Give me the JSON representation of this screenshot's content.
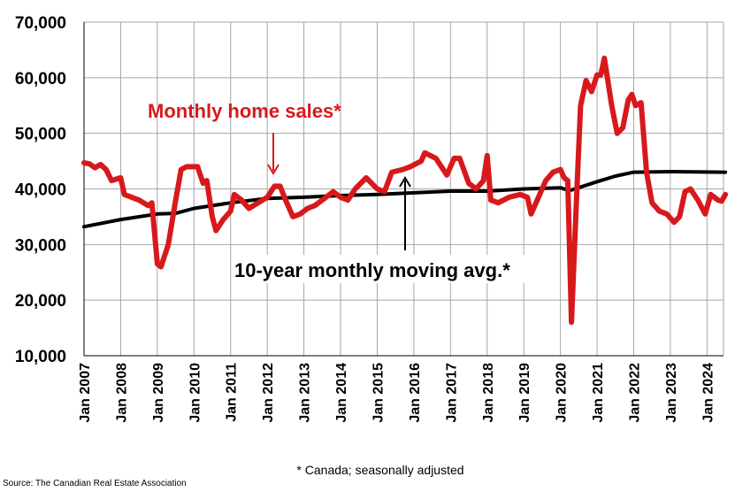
{
  "chart_data": {
    "type": "line",
    "title": "",
    "xlabel": "",
    "ylabel": "",
    "ylim": [
      10000,
      70000
    ],
    "xlim": [
      "Jan 2007",
      "Jun 2024"
    ],
    "grid": true,
    "y_ticks": [
      "10,000",
      "20,000",
      "30,000",
      "40,000",
      "50,000",
      "60,000",
      "70,000"
    ],
    "x_ticks": [
      "Jan 2007",
      "Jan 2008",
      "Jan 2009",
      "Jan 2010",
      "Jan 2011",
      "Jan 2012",
      "Jan 2013",
      "Jan 2014",
      "Jan 2015",
      "Jan 2016",
      "Jan 2017",
      "Jan 2018",
      "Jan 2019",
      "Jan 2020",
      "Jan 2021",
      "Jan 2022",
      "Jan 2023",
      "Jan 2024"
    ],
    "series": [
      {
        "name": "Monthly home sales*",
        "color": "#d7191c",
        "x": [
          2007.0,
          2007.15,
          2007.3,
          2007.45,
          2007.6,
          2007.75,
          2008.0,
          2008.1,
          2008.3,
          2008.5,
          2008.75,
          2008.85,
          2009.0,
          2009.1,
          2009.3,
          2009.5,
          2009.65,
          2009.8,
          2010.0,
          2010.1,
          2010.25,
          2010.35,
          2010.5,
          2010.6,
          2010.8,
          2011.0,
          2011.1,
          2011.3,
          2011.5,
          2011.75,
          2012.0,
          2012.2,
          2012.35,
          2012.5,
          2012.7,
          2012.9,
          2013.1,
          2013.3,
          2013.5,
          2013.8,
          2014.0,
          2014.2,
          2014.4,
          2014.7,
          2015.0,
          2015.2,
          2015.4,
          2015.7,
          2015.9,
          2016.2,
          2016.3,
          2016.6,
          2016.9,
          2017.1,
          2017.25,
          2017.5,
          2017.7,
          2017.9,
          2018.0,
          2018.1,
          2018.3,
          2018.6,
          2018.9,
          2019.1,
          2019.2,
          2019.4,
          2019.6,
          2019.8,
          2020.0,
          2020.1,
          2020.2,
          2020.3,
          2020.45,
          2020.55,
          2020.7,
          2020.85,
          2021.0,
          2021.1,
          2021.2,
          2021.4,
          2021.55,
          2021.7,
          2021.85,
          2021.95,
          2022.05,
          2022.2,
          2022.35,
          2022.5,
          2022.7,
          2022.9,
          2023.1,
          2023.25,
          2023.4,
          2023.55,
          2023.75,
          2023.95,
          2024.1,
          2024.3,
          2024.4,
          2024.5
        ],
        "y": [
          44700,
          44500,
          43800,
          44400,
          43500,
          41500,
          42000,
          39000,
          38500,
          38000,
          37000,
          37500,
          26500,
          26000,
          30000,
          38000,
          43500,
          44000,
          44000,
          44000,
          41000,
          41500,
          35000,
          32500,
          34500,
          36000,
          39000,
          38000,
          36500,
          37500,
          38500,
          40500,
          40500,
          38000,
          35000,
          35500,
          36500,
          37000,
          38000,
          39500,
          38500,
          38000,
          40000,
          42000,
          40000,
          39500,
          43000,
          43500,
          44000,
          45000,
          46500,
          45500,
          42500,
          45500,
          45500,
          41000,
          40000,
          41500,
          46000,
          38000,
          37500,
          38500,
          39000,
          38500,
          35500,
          38500,
          41500,
          43000,
          43500,
          42000,
          41500,
          16000,
          40000,
          55000,
          59500,
          57500,
          60500,
          60500,
          63500,
          55000,
          50000,
          51000,
          56000,
          57000,
          55000,
          55500,
          43000,
          37500,
          36000,
          35500,
          34000,
          35000,
          39500,
          40000,
          38000,
          35500,
          39000,
          38000,
          37800,
          39000
        ]
      },
      {
        "name": "10-year monthly moving avg.*",
        "color": "#000000",
        "x": [
          2007.0,
          2008.0,
          2009.0,
          2009.5,
          2010.0,
          2011.0,
          2012.0,
          2013.0,
          2014.0,
          2015.0,
          2016.0,
          2017.0,
          2018.0,
          2019.0,
          2020.0,
          2020.25,
          2021.0,
          2021.5,
          2022.0,
          2023.0,
          2024.5
        ],
        "y": [
          33200,
          34500,
          35500,
          35600,
          36500,
          37500,
          38300,
          38500,
          38800,
          39000,
          39300,
          39600,
          39600,
          40000,
          40200,
          39700,
          41300,
          42300,
          43000,
          43100,
          43000
        ]
      }
    ],
    "annotations": {
      "sales_label": "Monthly home sales*",
      "avg_label": "10-year monthly moving avg.*"
    },
    "footnote": "* Canada; seasonally adjusted",
    "source": "Source: The Canadian Real Estate Association"
  }
}
